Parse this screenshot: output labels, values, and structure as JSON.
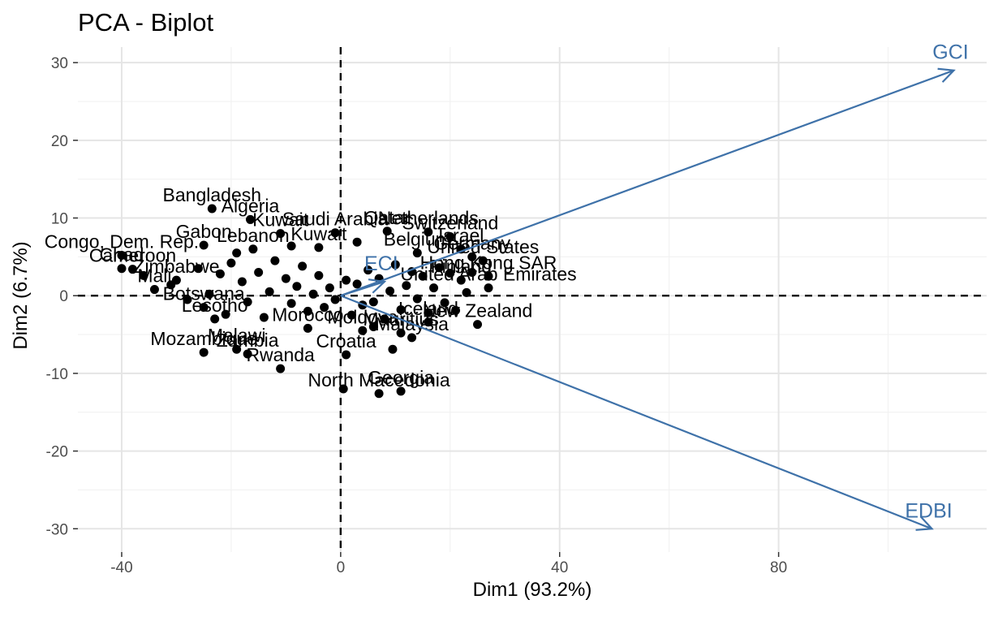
{
  "chart_data": {
    "type": "scatter",
    "title": "PCA - Biplot",
    "xlabel": "Dim1 (93.2%)",
    "ylabel": "Dim2 (6.7%)",
    "xlim": [
      -48,
      118
    ],
    "ylim": [
      -33,
      32
    ],
    "x_ticks": [
      -40,
      0,
      40,
      80
    ],
    "y_ticks": [
      -30,
      -20,
      -10,
      0,
      10,
      20,
      30
    ],
    "grid": true,
    "reference_lines": {
      "x": 0,
      "y": 0
    },
    "points": [
      {
        "label": "Bangladesh",
        "x": -23.5,
        "y": 11.2
      },
      {
        "label": "Algeria",
        "x": -16.5,
        "y": 9.8
      },
      {
        "label": "Gabon",
        "x": -25,
        "y": 6.5
      },
      {
        "label": "Lebanon",
        "x": -16,
        "y": 6.0
      },
      {
        "label": "Kuwait",
        "x": -11,
        "y": 8.0
      },
      {
        "label": "Kuwait",
        "x": -4,
        "y": 6.2
      },
      {
        "label": "Saudi Arabia",
        "x": -1,
        "y": 8.1
      },
      {
        "label": "Qatar",
        "x": 8.5,
        "y": 8.3
      },
      {
        "label": "Netherlands",
        "x": 16,
        "y": 8.2
      },
      {
        "label": "Switzerland",
        "x": 20,
        "y": 7.6
      },
      {
        "label": "Israel",
        "x": 22,
        "y": 6.0
      },
      {
        "label": "Germany",
        "x": 24,
        "y": 5.0
      },
      {
        "label": "Belgium",
        "x": 14,
        "y": 5.5
      },
      {
        "label": "United States",
        "x": 26,
        "y": 4.5
      },
      {
        "label": "Hong Kong SAR",
        "x": 27,
        "y": 2.5
      },
      {
        "label": "Finland",
        "x": 22,
        "y": 2.0
      },
      {
        "label": "United Arab Emirates",
        "x": 27,
        "y": 1.0
      },
      {
        "label": "New Zealand",
        "x": 25,
        "y": -3.7
      },
      {
        "label": "Iceland",
        "x": 16,
        "y": -3.4
      },
      {
        "label": "Malaysia",
        "x": 13,
        "y": -5.4
      },
      {
        "label": "Mauritius",
        "x": 11,
        "y": -4.8
      },
      {
        "label": "Moldova",
        "x": 4,
        "y": -4.5
      },
      {
        "label": "Morocco",
        "x": -6,
        "y": -4.2
      },
      {
        "label": "Zambia",
        "x": -17,
        "y": -7.5
      },
      {
        "label": "Malawi",
        "x": -19,
        "y": -6.9
      },
      {
        "label": "Lesotho",
        "x": -23,
        "y": -3.0
      },
      {
        "label": "Mozambique",
        "x": -25,
        "y": -7.3
      },
      {
        "label": "Rwanda",
        "x": -11,
        "y": -9.4
      },
      {
        "label": "North Macedonia",
        "x": 7,
        "y": -12.6
      },
      {
        "label": "Georgia",
        "x": 11,
        "y": -12.3
      },
      {
        "label": "Croatia",
        "x": 1,
        "y": -7.6
      },
      {
        "label": "Botswana",
        "x": -25,
        "y": -1.5
      },
      {
        "label": "Chad",
        "x": -40,
        "y": 3.5
      },
      {
        "label": "Congo, Dem. Rep.",
        "x": -40,
        "y": 5.2
      },
      {
        "label": "Cameroon",
        "x": -38,
        "y": 3.4
      },
      {
        "label": "Zimbabwe",
        "x": -30,
        "y": 2.0
      },
      {
        "label": "Mali",
        "x": -34,
        "y": 0.8
      }
    ],
    "extra_points": [
      [
        -26,
        3.5
      ],
      [
        -22,
        2.8
      ],
      [
        -20,
        4.2
      ],
      [
        -18,
        1.8
      ],
      [
        -15,
        3.0
      ],
      [
        -13,
        0.5
      ],
      [
        -12,
        4.5
      ],
      [
        -10,
        2.2
      ],
      [
        -9,
        -1.0
      ],
      [
        -8,
        1.2
      ],
      [
        -7,
        3.8
      ],
      [
        -6,
        -2.0
      ],
      [
        -5,
        0.2
      ],
      [
        -4,
        2.6
      ],
      [
        -3,
        -1.5
      ],
      [
        -2,
        1.0
      ],
      [
        -1,
        -0.5
      ],
      [
        0.5,
        -12
      ],
      [
        1,
        2.0
      ],
      [
        2,
        -2.5
      ],
      [
        3,
        1.5
      ],
      [
        4,
        -1.2
      ],
      [
        5,
        3.3
      ],
      [
        6,
        -0.8
      ],
      [
        7,
        2.2
      ],
      [
        8,
        -3.0
      ],
      [
        9,
        0.6
      ],
      [
        10,
        4.0
      ],
      [
        11,
        -1.8
      ],
      [
        12,
        1.3
      ],
      [
        13,
        3.1
      ],
      [
        14,
        -0.4
      ],
      [
        15,
        2.5
      ],
      [
        16,
        -2.2
      ],
      [
        17,
        1.0
      ],
      [
        18,
        3.6
      ],
      [
        19,
        -0.9
      ],
      [
        20,
        2.9
      ],
      [
        21,
        -1.9
      ],
      [
        23,
        0.4
      ],
      [
        24,
        3.0
      ],
      [
        -28,
        -0.5
      ],
      [
        -21,
        -2.4
      ],
      [
        -17,
        -0.8
      ],
      [
        -14,
        -2.8
      ],
      [
        -24,
        0.2
      ],
      [
        -31,
        1.4
      ],
      [
        -36,
        2.6
      ],
      [
        -19,
        5.5
      ],
      [
        -9,
        6.4
      ],
      [
        3,
        6.9
      ],
      [
        9.5,
        -6.9
      ],
      [
        6,
        -4.0
      ]
    ],
    "vectors": [
      {
        "name": "GCI",
        "x": 112,
        "y": 29
      },
      {
        "name": "EDBI",
        "x": 108,
        "y": -30
      },
      {
        "name": "ECI",
        "x": 8,
        "y": 1.8
      }
    ],
    "colors": {
      "points": "#000000",
      "vectors": "#3f72a9",
      "grid": "#e5e5e5",
      "axis_text": "#4d4d4d"
    }
  }
}
